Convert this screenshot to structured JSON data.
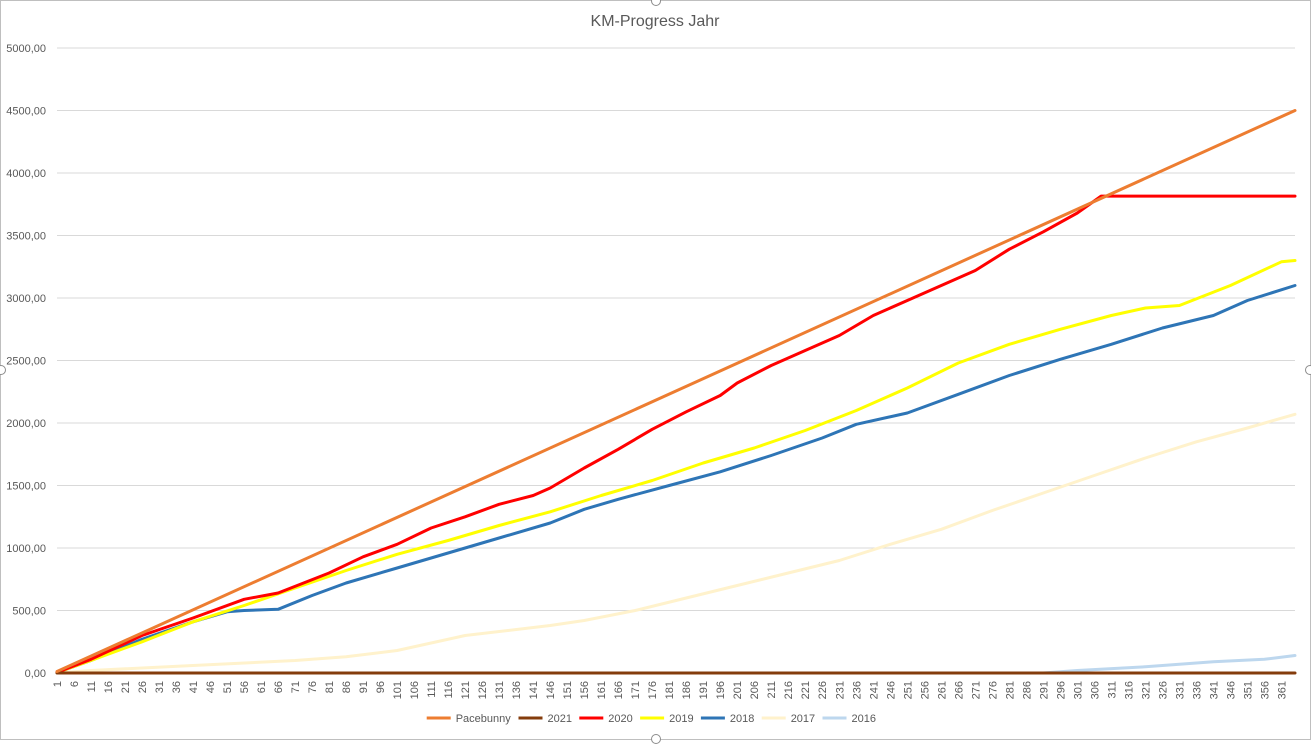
{
  "chart_data": {
    "type": "line",
    "title": "KM-Progress Jahr",
    "xlabel": "",
    "ylabel": "",
    "x_range": [
      1,
      365
    ],
    "x_tick_labels": [
      "1",
      "6",
      "11",
      "16",
      "21",
      "26",
      "31",
      "36",
      "41",
      "46",
      "51",
      "56",
      "61",
      "66",
      "71",
      "76",
      "81",
      "86",
      "91",
      "96",
      "101",
      "106",
      "111",
      "116",
      "121",
      "126",
      "131",
      "136",
      "141",
      "146",
      "151",
      "156",
      "161",
      "166",
      "171",
      "176",
      "181",
      "186",
      "191",
      "196",
      "201",
      "206",
      "211",
      "216",
      "221",
      "226",
      "231",
      "236",
      "241",
      "246",
      "251",
      "256",
      "261",
      "266",
      "271",
      "276",
      "281",
      "286",
      "291",
      "296",
      "301",
      "306",
      "311",
      "316",
      "321",
      "326",
      "331",
      "336",
      "341",
      "346",
      "351",
      "356",
      "361"
    ],
    "ylim": [
      0,
      5000
    ],
    "y_tick_labels": [
      "0,00",
      "500,00",
      "1000,00",
      "1500,00",
      "2000,00",
      "2500,00",
      "3000,00",
      "3500,00",
      "4000,00",
      "4500,00",
      "5000,00"
    ],
    "grid": "horizontal",
    "legend_position": "bottom",
    "series": [
      {
        "name": "Pacebunny",
        "color": "#ED7D31",
        "points": [
          [
            1,
            12
          ],
          [
            365,
            4500
          ]
        ]
      },
      {
        "name": "2021",
        "color": "#843C0C",
        "points": [
          [
            1,
            0
          ],
          [
            365,
            0
          ]
        ]
      },
      {
        "name": "2020",
        "color": "#FF0000",
        "points": [
          [
            1,
            5
          ],
          [
            11,
            110
          ],
          [
            26,
            300
          ],
          [
            41,
            440
          ],
          [
            56,
            590
          ],
          [
            66,
            640
          ],
          [
            81,
            800
          ],
          [
            91,
            930
          ],
          [
            101,
            1030
          ],
          [
            111,
            1160
          ],
          [
            121,
            1250
          ],
          [
            131,
            1350
          ],
          [
            141,
            1420
          ],
          [
            146,
            1480
          ],
          [
            156,
            1640
          ],
          [
            166,
            1790
          ],
          [
            176,
            1950
          ],
          [
            186,
            2090
          ],
          [
            196,
            2220
          ],
          [
            201,
            2320
          ],
          [
            211,
            2460
          ],
          [
            221,
            2580
          ],
          [
            231,
            2700
          ],
          [
            241,
            2860
          ],
          [
            251,
            2980
          ],
          [
            261,
            3100
          ],
          [
            271,
            3220
          ],
          [
            281,
            3390
          ],
          [
            291,
            3530
          ],
          [
            301,
            3680
          ],
          [
            308,
            3815
          ],
          [
            365,
            3815
          ]
        ]
      },
      {
        "name": "2019",
        "color": "#FFFF00",
        "points": [
          [
            1,
            5
          ],
          [
            11,
            100
          ],
          [
            26,
            250
          ],
          [
            41,
            410
          ],
          [
            56,
            540
          ],
          [
            71,
            680
          ],
          [
            86,
            820
          ],
          [
            101,
            950
          ],
          [
            116,
            1060
          ],
          [
            131,
            1180
          ],
          [
            146,
            1290
          ],
          [
            161,
            1420
          ],
          [
            176,
            1540
          ],
          [
            191,
            1680
          ],
          [
            206,
            1800
          ],
          [
            221,
            1940
          ],
          [
            236,
            2100
          ],
          [
            251,
            2280
          ],
          [
            266,
            2480
          ],
          [
            281,
            2630
          ],
          [
            296,
            2750
          ],
          [
            311,
            2860
          ],
          [
            321,
            2920
          ],
          [
            331,
            2940
          ],
          [
            346,
            3100
          ],
          [
            361,
            3290
          ],
          [
            365,
            3300
          ]
        ]
      },
      {
        "name": "2018",
        "color": "#2E75B6",
        "points": [
          [
            1,
            5
          ],
          [
            11,
            100
          ],
          [
            26,
            270
          ],
          [
            41,
            410
          ],
          [
            51,
            490
          ],
          [
            56,
            500
          ],
          [
            66,
            510
          ],
          [
            76,
            620
          ],
          [
            86,
            720
          ],
          [
            101,
            840
          ],
          [
            116,
            960
          ],
          [
            131,
            1080
          ],
          [
            146,
            1200
          ],
          [
            156,
            1310
          ],
          [
            166,
            1390
          ],
          [
            181,
            1500
          ],
          [
            196,
            1610
          ],
          [
            211,
            1740
          ],
          [
            226,
            1880
          ],
          [
            236,
            1990
          ],
          [
            251,
            2080
          ],
          [
            266,
            2230
          ],
          [
            281,
            2380
          ],
          [
            296,
            2510
          ],
          [
            311,
            2630
          ],
          [
            326,
            2760
          ],
          [
            341,
            2860
          ],
          [
            351,
            2980
          ],
          [
            365,
            3100
          ]
        ]
      },
      {
        "name": "2017",
        "color": "#FFF2CC",
        "points": [
          [
            1,
            0
          ],
          [
            11,
            20
          ],
          [
            41,
            60
          ],
          [
            71,
            100
          ],
          [
            86,
            130
          ],
          [
            101,
            180
          ],
          [
            121,
            300
          ],
          [
            146,
            380
          ],
          [
            156,
            420
          ],
          [
            171,
            500
          ],
          [
            186,
            600
          ],
          [
            201,
            700
          ],
          [
            216,
            800
          ],
          [
            231,
            900
          ],
          [
            246,
            1030
          ],
          [
            261,
            1150
          ],
          [
            276,
            1300
          ],
          [
            291,
            1440
          ],
          [
            306,
            1580
          ],
          [
            321,
            1720
          ],
          [
            336,
            1850
          ],
          [
            351,
            1960
          ],
          [
            365,
            2070
          ]
        ]
      },
      {
        "name": "2016",
        "color": "#BDD7EE",
        "points": [
          [
            1,
            0
          ],
          [
            291,
            0
          ],
          [
            301,
            20
          ],
          [
            321,
            50
          ],
          [
            341,
            90
          ],
          [
            356,
            110
          ],
          [
            365,
            140
          ]
        ]
      }
    ]
  }
}
